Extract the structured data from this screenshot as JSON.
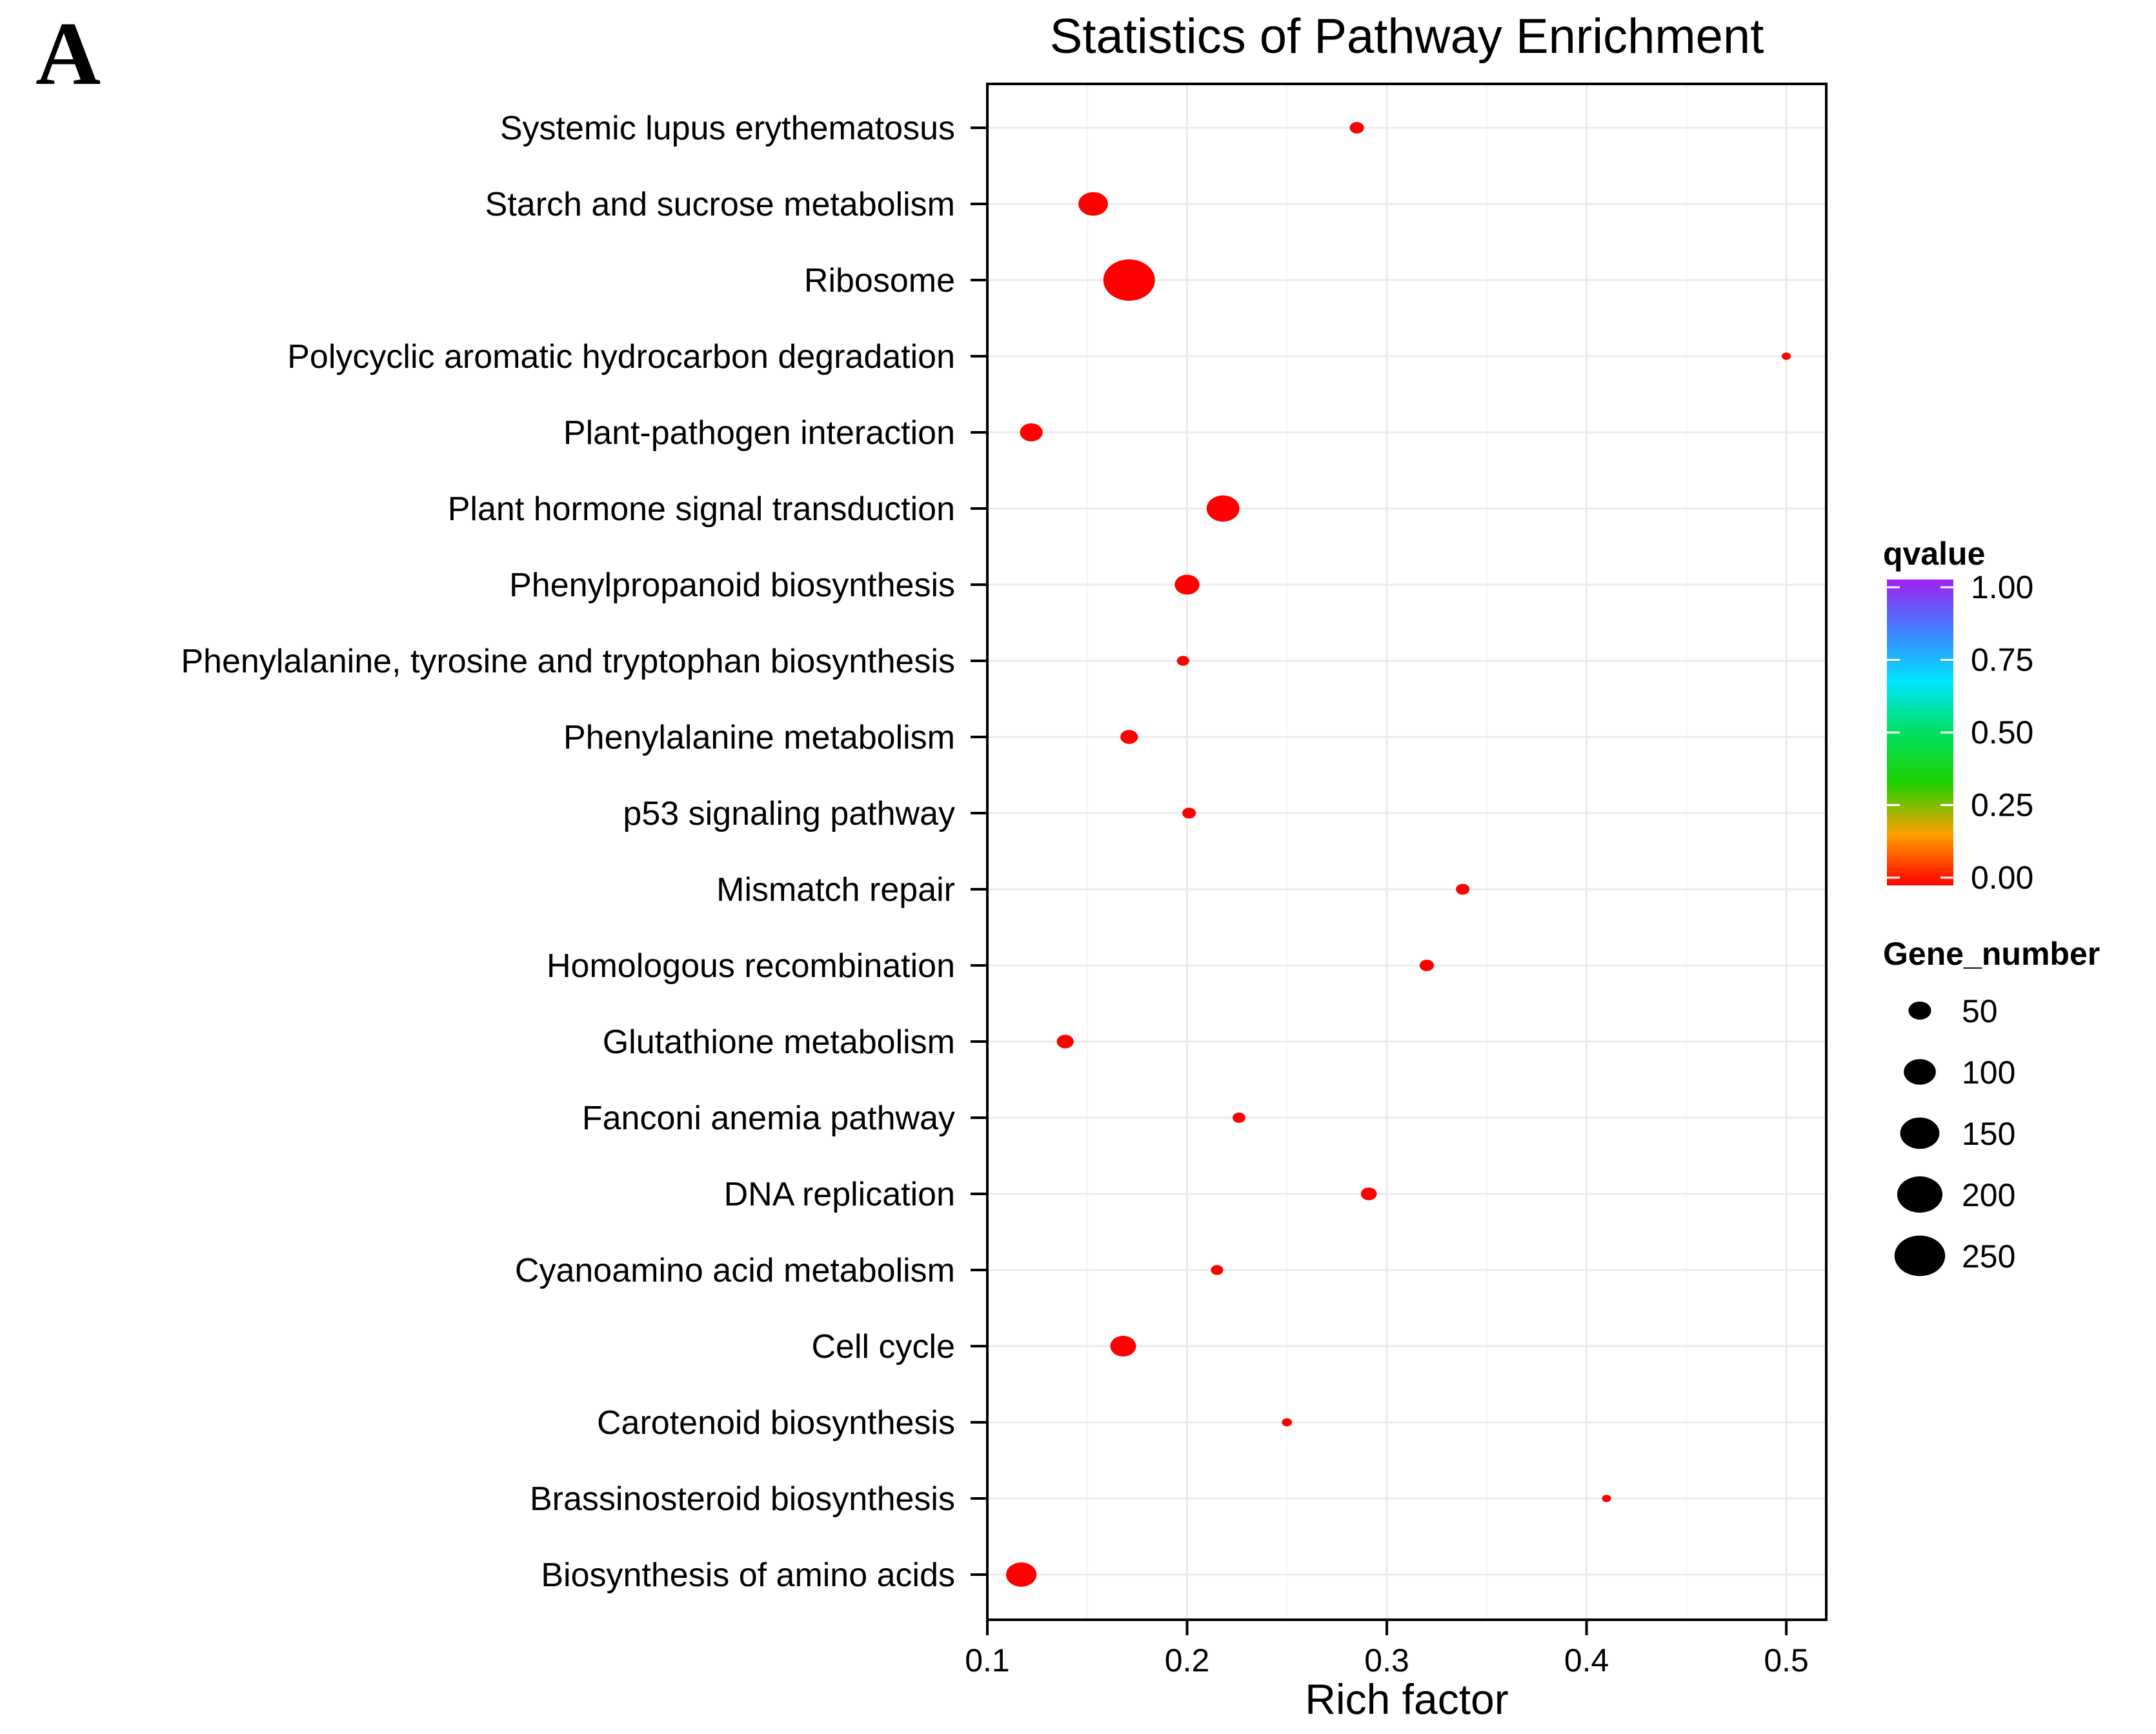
{
  "panel_label": "A",
  "chart_data": {
    "type": "scatter",
    "title": "Statistics of Pathway Enrichment",
    "xlabel": "Rich factor",
    "ylabel": "",
    "xlim": [
      0.1,
      0.52
    ],
    "xticks": [
      0.1,
      0.2,
      0.3,
      0.4,
      0.5
    ],
    "xtick_labels": [
      "0.1",
      "0.2",
      "0.3",
      "0.4",
      "0.5"
    ],
    "grid": true,
    "legend_position": "right",
    "categories": [
      "Systemic lupus erythematosus",
      "Starch and sucrose metabolism",
      "Ribosome",
      "Polycyclic aromatic hydrocarbon degradation",
      "Plant-pathogen interaction",
      "Plant hormone signal transduction",
      "Phenylpropanoid biosynthesis",
      "Phenylalanine, tyrosine and tryptophan biosynthesis",
      "Phenylalanine metabolism",
      "p53 signaling pathway",
      "Mismatch repair",
      "Homologous recombination",
      "Glutathione metabolism",
      "Fanconi anemia pathway",
      "DNA replication",
      "Cyanoamino acid metabolism",
      "Cell cycle",
      "Carotenoid biosynthesis",
      "Brassinosteroid biosynthesis",
      "Biosynthesis of amino acids"
    ],
    "rich_factor": [
      0.285,
      0.153,
      0.171,
      0.5,
      0.122,
      0.218,
      0.2,
      0.198,
      0.171,
      0.201,
      0.338,
      0.32,
      0.139,
      0.226,
      0.291,
      0.215,
      0.168,
      0.25,
      0.41,
      0.117
    ],
    "gene_number": [
      20,
      85,
      260,
      8,
      50,
      105,
      60,
      15,
      30,
      18,
      18,
      20,
      28,
      16,
      25,
      15,
      65,
      10,
      8,
      90
    ],
    "qvalue": [
      0,
      0,
      0,
      0,
      0,
      0,
      0,
      0,
      0,
      0,
      0,
      0,
      0,
      0,
      0,
      0,
      0,
      0,
      0,
      0
    ],
    "point_color": "#ff0000",
    "legend": {
      "color_title": "qvalue",
      "color_ticks": [
        1.0,
        0.75,
        0.5,
        0.25,
        0.0
      ],
      "color_tick_labels": [
        "1.00",
        "0.75",
        "0.50",
        "0.25",
        "0.00"
      ],
      "colors_top_to_bottom": [
        "#a020f0",
        "#4080ff",
        "#00e5ff",
        "#00e060",
        "#20d000",
        "#ffa000",
        "#ff0000"
      ],
      "size_title": "Gene_number",
      "size_values": [
        50,
        100,
        150,
        200,
        250
      ],
      "size_labels": [
        "50",
        "100",
        "150",
        "200",
        "250"
      ]
    }
  }
}
